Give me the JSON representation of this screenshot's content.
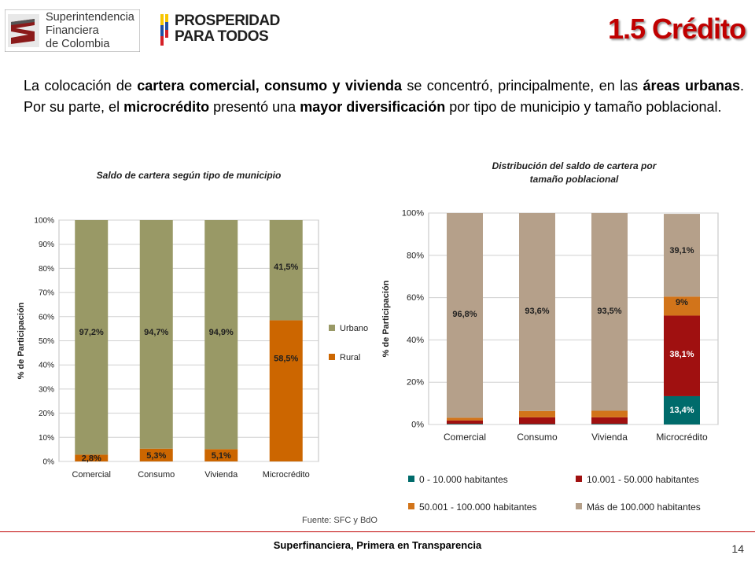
{
  "header": {
    "logo_sfc_lines": [
      "Superintendencia",
      "Financiera",
      "de Colombia"
    ],
    "logo_pro_lines": [
      "PROSPERIDAD",
      "PARA TODOS"
    ],
    "title": "1.5 Crédito"
  },
  "intro": {
    "p1": "La colocación de ",
    "b1": "cartera comercial, consumo y vivienda",
    "p2": " se concentró, principalmente, en las ",
    "b2": "áreas urbanas",
    "p3": ". Por su parte, el ",
    "b3": "microcrédito",
    "p4": " presentó una ",
    "b4": "mayor diversificación",
    "p5": " por tipo de municipio y tamaño poblacional."
  },
  "source": "Fuente: SFC y BdO",
  "footer": "Superfinanciera, Primera en Transparencia",
  "page_number": "14",
  "chart_data": [
    {
      "type": "bar",
      "stacked": true,
      "title": "Saldo de cartera según tipo de municipio",
      "ylabel": "% de Participación",
      "ylim": [
        0,
        100
      ],
      "yticks": [
        "0%",
        "10%",
        "20%",
        "30%",
        "40%",
        "50%",
        "60%",
        "70%",
        "80%",
        "90%",
        "100%"
      ],
      "categories": [
        "Comercial",
        "Consumo",
        "Vivienda",
        "Microcrédito"
      ],
      "legend_position": "right",
      "series": [
        {
          "name": "Rural",
          "color": "#cc6600",
          "values": [
            2.8,
            5.3,
            5.1,
            58.5
          ],
          "labels": [
            "2,8%",
            "5,3%",
            "5,1%",
            "58,5%"
          ]
        },
        {
          "name": "Urbano",
          "color": "#999966",
          "values": [
            97.2,
            94.7,
            94.9,
            41.5
          ],
          "labels": [
            "97,2%",
            "94,7%",
            "94,9%",
            "41,5%"
          ]
        }
      ]
    },
    {
      "type": "bar",
      "stacked": true,
      "title": "Distribución del saldo de cartera por tamaño poblacional",
      "title_lines": [
        "Distribución del saldo de cartera por",
        "tamaño poblacional"
      ],
      "ylabel": "% de Participación",
      "ylim": [
        0,
        100
      ],
      "yticks": [
        "0%",
        "20%",
        "40%",
        "60%",
        "80%",
        "100%"
      ],
      "categories": [
        "Comercial",
        "Consumo",
        "Vivienda",
        "Microcrédito"
      ],
      "legend_position": "bottom",
      "series": [
        {
          "name": "0 - 10.000 habitantes",
          "color": "#006b6b",
          "values": [
            0.3,
            0.2,
            0.3,
            13.4
          ],
          "labels": [
            "",
            "",
            "",
            "13,4%"
          ]
        },
        {
          "name": "10.001 - 50.000 habitantes",
          "color": "#a01010",
          "values": [
            1.6,
            3.2,
            3.1,
            38.1
          ],
          "labels": [
            "",
            "",
            "",
            "38,1%"
          ]
        },
        {
          "name": "50.001 - 100.000 habitantes",
          "color": "#d2741a",
          "values": [
            1.3,
            3.0,
            3.1,
            9
          ],
          "labels": [
            "",
            "",
            "",
            "9%"
          ]
        },
        {
          "name": "Más de 100.000 habitantes",
          "color": "#b5a08a",
          "values": [
            96.8,
            93.6,
            93.5,
            39.1
          ],
          "labels": [
            "96,8%",
            "93,6%",
            "93,5%",
            "39,1%"
          ]
        }
      ]
    }
  ]
}
